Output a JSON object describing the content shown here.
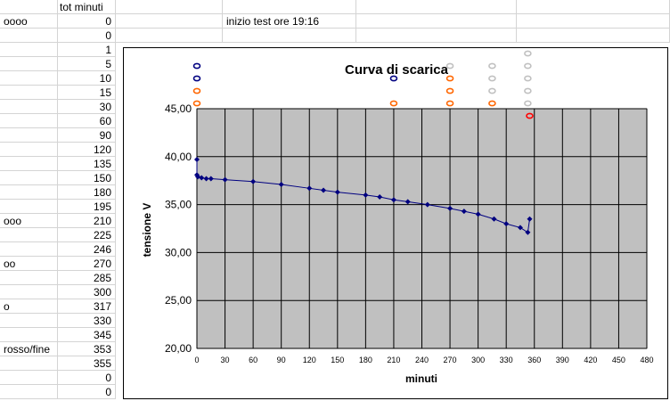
{
  "sheet": {
    "col_a_values": [
      "",
      "oooo",
      "",
      "",
      "",
      "",
      "",
      "",
      "",
      "",
      "",
      "",
      "",
      "",
      "",
      "ooo",
      "",
      "",
      "oo",
      "",
      "",
      "o",
      "",
      "",
      "rosso/fine",
      "",
      "",
      ""
    ],
    "col_b_values": [
      "tot minuti",
      "0",
      "0",
      "1",
      "5",
      "10",
      "15",
      "30",
      "60",
      "90",
      "120",
      "135",
      "150",
      "180",
      "195",
      "210",
      "225",
      "246",
      "270",
      "285",
      "300",
      "317",
      "330",
      "345",
      "353",
      "355",
      "0",
      "0"
    ],
    "note": "inizio test ore 19:16"
  },
  "chart_data": {
    "type": "line",
    "title": "Curva di scarica",
    "xlabel": "minuti",
    "ylabel": "tensione V",
    "xlim": [
      0,
      480
    ],
    "ylim": [
      20,
      45
    ],
    "x_ticks": [
      "0",
      "30",
      "60",
      "90",
      "120",
      "150",
      "180",
      "210",
      "240",
      "270",
      "300",
      "330",
      "360",
      "390",
      "420",
      "450",
      "480"
    ],
    "y_ticks": [
      "20,00",
      "25,00",
      "30,00",
      "35,00",
      "40,00",
      "45,00"
    ],
    "grid": true,
    "plot_background": "#c0c0c0",
    "series_color": "#000080",
    "series": [
      {
        "x": [
          0,
          0,
          1,
          5,
          10,
          15,
          30,
          60,
          90,
          120,
          135,
          150,
          180,
          195,
          210,
          225,
          246,
          270,
          285,
          300,
          317,
          330,
          345,
          353,
          355
        ],
        "values": [
          39.7,
          38.1,
          37.9,
          37.8,
          37.7,
          37.7,
          37.6,
          37.4,
          37.1,
          36.7,
          36.5,
          36.3,
          36.0,
          35.8,
          35.5,
          35.3,
          35.0,
          34.6,
          34.3,
          34.0,
          33.5,
          33.0,
          32.6,
          32.1,
          33.5
        ]
      }
    ],
    "markers": [
      {
        "x": 0,
        "row": 1,
        "color": "#000080"
      },
      {
        "x": 0,
        "row": 2,
        "color": "#000080"
      },
      {
        "x": 0,
        "row": 3,
        "color": "#ff6600"
      },
      {
        "x": 0,
        "row": 4,
        "color": "#ff6600"
      },
      {
        "x": 210,
        "row": 2,
        "color": "#000080"
      },
      {
        "x": 210,
        "row": 4,
        "color": "#ff6600"
      },
      {
        "x": 270,
        "row": 1,
        "color": "#c0c0c0"
      },
      {
        "x": 270,
        "row": 2,
        "color": "#ff6600"
      },
      {
        "x": 270,
        "row": 3,
        "color": "#ff6600"
      },
      {
        "x": 270,
        "row": 4,
        "color": "#ff6600"
      },
      {
        "x": 315,
        "row": 1,
        "color": "#c0c0c0"
      },
      {
        "x": 315,
        "row": 2,
        "color": "#c0c0c0"
      },
      {
        "x": 315,
        "row": 3,
        "color": "#c0c0c0"
      },
      {
        "x": 315,
        "row": 4,
        "color": "#ff6600"
      },
      {
        "x": 353,
        "row": 0,
        "color": "#c0c0c0"
      },
      {
        "x": 353,
        "row": 1,
        "color": "#c0c0c0"
      },
      {
        "x": 353,
        "row": 2,
        "color": "#c0c0c0"
      },
      {
        "x": 353,
        "row": 3,
        "color": "#c0c0c0"
      },
      {
        "x": 353,
        "row": 4,
        "color": "#c0c0c0"
      },
      {
        "x": 355,
        "row": 5,
        "color": "#ff0000"
      }
    ]
  }
}
